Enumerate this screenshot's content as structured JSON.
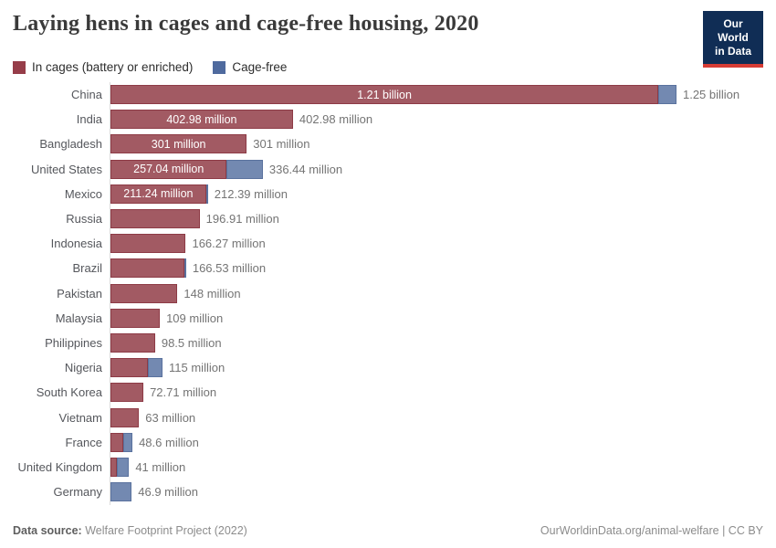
{
  "header": {
    "title": "Laying hens in cages and cage-free housing, 2020",
    "logo_line1": "Our World",
    "logo_line2": "in Data"
  },
  "legend": [
    {
      "label": "In cages (battery or enriched)"
    },
    {
      "label": "Cage-free"
    }
  ],
  "colors": {
    "cages_fill": "#a25a63",
    "cages_border": "#8d3b46",
    "cage_free_fill": "#7389b1",
    "cage_free_border": "#5a729e",
    "legend_cages": "#963d49",
    "legend_cage_free": "#4f6a9e",
    "logo_navy": "#102d55",
    "logo_red": "#d73c34",
    "axis": "#dcdcdc"
  },
  "chart_data": {
    "type": "bar",
    "orientation": "horizontal",
    "stacked": true,
    "title": "Laying hens in cages and cage-free housing, 2020",
    "series_names": [
      "In cages (battery or enriched)",
      "Cage-free"
    ],
    "unit": "hens",
    "x_range_millions": [
      0,
      1250
    ],
    "grid": false,
    "rows": [
      {
        "country": "China",
        "cages_millions": 1210,
        "cage_free_millions": 40,
        "inside_label": "1.21 billion",
        "total_label": "1.25 billion"
      },
      {
        "country": "India",
        "cages_millions": 402.98,
        "cage_free_millions": 0,
        "inside_label": "402.98 million",
        "total_label": "402.98 million"
      },
      {
        "country": "Bangladesh",
        "cages_millions": 301,
        "cage_free_millions": 0,
        "inside_label": "301 million",
        "total_label": "301 million"
      },
      {
        "country": "United States",
        "cages_millions": 257.04,
        "cage_free_millions": 79.4,
        "inside_label": "257.04 million",
        "total_label": "336.44 million"
      },
      {
        "country": "Mexico",
        "cages_millions": 211.24,
        "cage_free_millions": 1.15,
        "inside_label": "211.24 million",
        "total_label": "212.39 million"
      },
      {
        "country": "Russia",
        "cages_millions": 196.91,
        "cage_free_millions": 0,
        "inside_label": null,
        "total_label": "196.91 million"
      },
      {
        "country": "Indonesia",
        "cages_millions": 166.27,
        "cage_free_millions": 0,
        "inside_label": null,
        "total_label": "166.27 million"
      },
      {
        "country": "Brazil",
        "cages_millions": 163,
        "cage_free_millions": 3.5,
        "inside_label": null,
        "total_label": "166.53 million"
      },
      {
        "country": "Pakistan",
        "cages_millions": 148,
        "cage_free_millions": 0,
        "inside_label": null,
        "total_label": "148 million"
      },
      {
        "country": "Malaysia",
        "cages_millions": 109,
        "cage_free_millions": 0,
        "inside_label": null,
        "total_label": "109 million"
      },
      {
        "country": "Philippines",
        "cages_millions": 98.5,
        "cage_free_millions": 0,
        "inside_label": null,
        "total_label": "98.5 million"
      },
      {
        "country": "Nigeria",
        "cages_millions": 83,
        "cage_free_millions": 32,
        "inside_label": null,
        "total_label": "115 million"
      },
      {
        "country": "South Korea",
        "cages_millions": 72.71,
        "cage_free_millions": 0,
        "inside_label": null,
        "total_label": "72.71 million"
      },
      {
        "country": "Vietnam",
        "cages_millions": 63,
        "cage_free_millions": 0,
        "inside_label": null,
        "total_label": "63 million"
      },
      {
        "country": "France",
        "cages_millions": 28.6,
        "cage_free_millions": 20,
        "inside_label": null,
        "total_label": "48.6 million"
      },
      {
        "country": "United Kingdom",
        "cages_millions": 14,
        "cage_free_millions": 27,
        "inside_label": null,
        "total_label": "41 million"
      },
      {
        "country": "Germany",
        "cages_millions": 0,
        "cage_free_millions": 46.9,
        "inside_label": null,
        "total_label": "46.9 million"
      }
    ]
  },
  "footer": {
    "source_label": "Data source:",
    "source_text": " Welfare Footprint Project (2022)",
    "credit": "OurWorldinData.org/animal-welfare | CC BY"
  }
}
